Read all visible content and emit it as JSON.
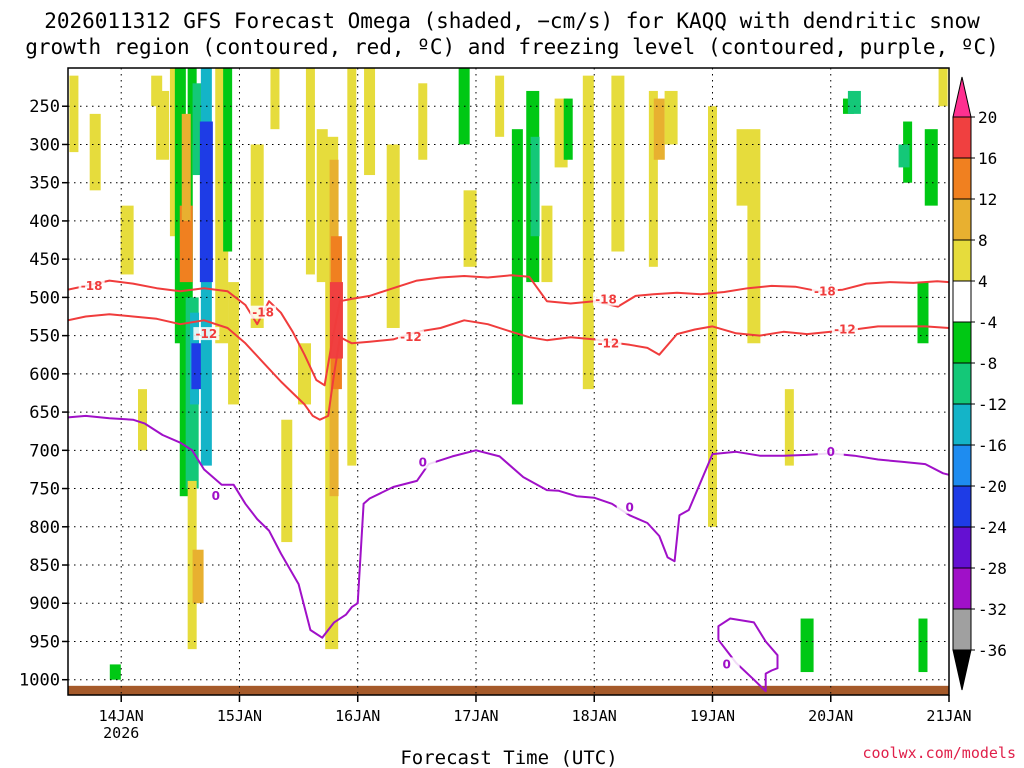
{
  "title_line1": "2026011312 GFS Forecast Omega (shaded, −cm/s) for KAQQ with dendritic snow",
  "title_line2": "growth region (contoured, red, ºC) and freezing level (contoured, purple, ºC)",
  "xlabel": "Forecast Time (UTC)",
  "credit": "coolwx.com/models",
  "chart_data": {
    "type": "heatmap",
    "title": "2026011312 GFS Forecast Omega (shaded, −cm/s) for KAQQ with dendritic snow growth region (contoured, red, ºC) and freezing level (contoured, purple, ºC)",
    "xlabel": "Forecast Time (UTC)",
    "ylabel": "",
    "x_unit": "day (Jan 2026)",
    "xlim": [
      13.55,
      21.0
    ],
    "x_ticks": [
      {
        "value": 14,
        "label": "14JAN",
        "sublabel": "2026"
      },
      {
        "value": 15,
        "label": "15JAN"
      },
      {
        "value": 16,
        "label": "16JAN"
      },
      {
        "value": 17,
        "label": "17JAN"
      },
      {
        "value": 18,
        "label": "18JAN"
      },
      {
        "value": 19,
        "label": "19JAN"
      },
      {
        "value": 20,
        "label": "20JAN"
      },
      {
        "value": 21,
        "label": "21JAN"
      }
    ],
    "y_unit": "hPa",
    "y_reversed": true,
    "ylim": [
      1020,
      200
    ],
    "y_ticks": [
      250,
      300,
      350,
      400,
      450,
      500,
      550,
      600,
      650,
      700,
      750,
      800,
      850,
      900,
      950,
      1000
    ],
    "grid": true,
    "colorbar": {
      "ticks": [
        20,
        16,
        12,
        8,
        4,
        -4,
        -8,
        -12,
        -16,
        -20,
        -24,
        -28,
        -32,
        -36
      ],
      "bins": [
        {
          "from": 20,
          "to": 24,
          "color": "#ff3090"
        },
        {
          "from": 16,
          "to": 20,
          "color": "#f04040"
        },
        {
          "from": 12,
          "to": 16,
          "color": "#f08020"
        },
        {
          "from": 8,
          "to": 12,
          "color": "#e8b030"
        },
        {
          "from": 4,
          "to": 8,
          "color": "#e6dc3c"
        },
        {
          "from": -4,
          "to": 4,
          "color": "#ffffff"
        },
        {
          "from": -8,
          "to": -4,
          "color": "#00c814"
        },
        {
          "from": -12,
          "to": -8,
          "color": "#14c878"
        },
        {
          "from": -16,
          "to": -12,
          "color": "#14b4c8"
        },
        {
          "from": -20,
          "to": -16,
          "color": "#1e8cf0"
        },
        {
          "from": -24,
          "to": -20,
          "color": "#1e3ce6"
        },
        {
          "from": -28,
          "to": -24,
          "color": "#6410d2"
        },
        {
          "from": -32,
          "to": -28,
          "color": "#a010c8"
        },
        {
          "from": -36,
          "to": -32,
          "color": "#a0a0a0"
        },
        {
          "from": -40,
          "to": -36,
          "color": "#000000"
        }
      ]
    },
    "omega_areas": [
      {
        "x": 13.6,
        "p0": 210,
        "p1": 310,
        "value": 5
      },
      {
        "x": 13.78,
        "p0": 260,
        "p1": 360,
        "value": 5
      },
      {
        "x": 14.05,
        "p0": 380,
        "p1": 470,
        "value": 5
      },
      {
        "x": 14.18,
        "p0": 620,
        "p1": 700,
        "value": 5
      },
      {
        "x": 14.3,
        "p0": 210,
        "p1": 250,
        "value": 5
      },
      {
        "x": 14.35,
        "p0": 230,
        "p1": 320,
        "value": 5
      },
      {
        "x": 14.45,
        "p0": 200,
        "p1": 420,
        "value": 5
      },
      {
        "x": 14.5,
        "p0": 200,
        "p1": 560,
        "value": -6
      },
      {
        "x": 14.55,
        "p0": 300,
        "p1": 760,
        "value": -6
      },
      {
        "x": 14.6,
        "p0": 200,
        "p1": 300,
        "value": -6
      },
      {
        "x": 14.65,
        "p0": 220,
        "p1": 340,
        "value": -10
      },
      {
        "x": 14.6,
        "p0": 500,
        "p1": 750,
        "value": -10
      },
      {
        "x": 14.62,
        "p0": 520,
        "p1": 640,
        "value": -14
      },
      {
        "x": 14.64,
        "p0": 560,
        "p1": 620,
        "value": -22
      },
      {
        "x": 14.55,
        "p0": 380,
        "p1": 480,
        "value": 14
      },
      {
        "x": 14.55,
        "p0": 260,
        "p1": 400,
        "value": 10
      },
      {
        "x": 14.72,
        "p0": 200,
        "p1": 720,
        "value": -14
      },
      {
        "x": 14.72,
        "p0": 270,
        "p1": 480,
        "value": -22
      },
      {
        "x": 14.6,
        "p0": 740,
        "p1": 960,
        "value": 5
      },
      {
        "x": 14.65,
        "p0": 830,
        "p1": 900,
        "value": 10
      },
      {
        "x": 14.85,
        "p0": 200,
        "p1": 560,
        "value": 5
      },
      {
        "x": 14.9,
        "p0": 200,
        "p1": 440,
        "value": -6
      },
      {
        "x": 14.95,
        "p0": 480,
        "p1": 640,
        "value": 5
      },
      {
        "x": 15.15,
        "p0": 300,
        "p1": 540,
        "value": 5
      },
      {
        "x": 15.3,
        "p0": 200,
        "p1": 280,
        "value": 5
      },
      {
        "x": 15.4,
        "p0": 660,
        "p1": 820,
        "value": 5
      },
      {
        "x": 15.55,
        "p0": 560,
        "p1": 640,
        "value": 5
      },
      {
        "x": 15.6,
        "p0": 200,
        "p1": 470,
        "value": 5
      },
      {
        "x": 15.7,
        "p0": 280,
        "p1": 480,
        "value": 5
      },
      {
        "x": 15.78,
        "p0": 290,
        "p1": 960,
        "value": 5
      },
      {
        "x": 15.8,
        "p0": 320,
        "p1": 760,
        "value": 10
      },
      {
        "x": 15.82,
        "p0": 420,
        "p1": 620,
        "value": 14
      },
      {
        "x": 15.82,
        "p0": 480,
        "p1": 580,
        "value": 18
      },
      {
        "x": 15.95,
        "p0": 200,
        "p1": 720,
        "value": 5
      },
      {
        "x": 16.1,
        "p0": 200,
        "p1": 340,
        "value": 5
      },
      {
        "x": 16.3,
        "p0": 300,
        "p1": 540,
        "value": 5
      },
      {
        "x": 16.55,
        "p0": 220,
        "p1": 320,
        "value": 5
      },
      {
        "x": 16.9,
        "p0": 200,
        "p1": 300,
        "value": -6
      },
      {
        "x": 16.95,
        "p0": 360,
        "p1": 460,
        "value": 5
      },
      {
        "x": 17.2,
        "p0": 210,
        "p1": 290,
        "value": 5
      },
      {
        "x": 17.35,
        "p0": 280,
        "p1": 640,
        "value": -6
      },
      {
        "x": 17.48,
        "p0": 230,
        "p1": 480,
        "value": -6
      },
      {
        "x": 17.5,
        "p0": 290,
        "p1": 420,
        "value": -10
      },
      {
        "x": 17.6,
        "p0": 380,
        "p1": 480,
        "value": 5
      },
      {
        "x": 17.72,
        "p0": 240,
        "p1": 330,
        "value": 5
      },
      {
        "x": 17.78,
        "p0": 240,
        "p1": 320,
        "value": -6
      },
      {
        "x": 17.95,
        "p0": 210,
        "p1": 620,
        "value": 5
      },
      {
        "x": 18.2,
        "p0": 210,
        "p1": 440,
        "value": 5
      },
      {
        "x": 18.5,
        "p0": 230,
        "p1": 460,
        "value": 5
      },
      {
        "x": 18.55,
        "p0": 240,
        "p1": 320,
        "value": 10
      },
      {
        "x": 18.65,
        "p0": 230,
        "p1": 300,
        "value": 5
      },
      {
        "x": 19.0,
        "p0": 250,
        "p1": 800,
        "value": 5
      },
      {
        "x": 19.25,
        "p0": 280,
        "p1": 380,
        "value": 5
      },
      {
        "x": 19.35,
        "p0": 280,
        "p1": 560,
        "value": 5
      },
      {
        "x": 19.65,
        "p0": 620,
        "p1": 720,
        "value": 5
      },
      {
        "x": 20.15,
        "p0": 240,
        "p1": 260,
        "value": -6
      },
      {
        "x": 20.2,
        "p0": 230,
        "p1": 260,
        "value": -10
      },
      {
        "x": 20.65,
        "p0": 270,
        "p1": 350,
        "value": -6
      },
      {
        "x": 20.62,
        "p0": 300,
        "p1": 330,
        "value": -10
      },
      {
        "x": 20.85,
        "p0": 280,
        "p1": 380,
        "value": -6
      },
      {
        "x": 20.95,
        "p0": 200,
        "p1": 250,
        "value": 5
      },
      {
        "x": 20.78,
        "p0": 480,
        "p1": 560,
        "value": -6
      },
      {
        "x": 19.8,
        "p0": 920,
        "p1": 990,
        "value": -6
      },
      {
        "x": 20.78,
        "p0": 920,
        "p1": 990,
        "value": -6
      },
      {
        "x": 13.95,
        "p0": 980,
        "p1": 1000,
        "value": -6
      }
    ],
    "contours": [
      {
        "name": "-18",
        "color": "#f03c3c",
        "label_color": "#f03c3c",
        "x": [
          13.55,
          13.7,
          13.9,
          14.1,
          14.3,
          14.5,
          14.7,
          14.9,
          15.05,
          15.15,
          15.25,
          15.35,
          15.45,
          15.55,
          15.65,
          15.72,
          15.78,
          15.85,
          15.95,
          16.1,
          16.3,
          16.5,
          16.7,
          16.9,
          17.1,
          17.3,
          17.45,
          17.6,
          17.8,
          18.0,
          18.2,
          18.35,
          18.5,
          18.7,
          18.9,
          19.1,
          19.3,
          19.5,
          19.7,
          19.9,
          20.1,
          20.3,
          20.5,
          20.7,
          20.9,
          21.0
        ],
        "y": [
          490,
          485,
          478,
          482,
          488,
          492,
          488,
          492,
          510,
          535,
          505,
          520,
          545,
          575,
          608,
          615,
          560,
          505,
          502,
          498,
          488,
          478,
          474,
          472,
          474,
          471,
          473,
          505,
          508,
          505,
          512,
          498,
          496,
          494,
          496,
          493,
          488,
          485,
          486,
          492,
          490,
          482,
          480,
          481,
          479,
          480
        ],
        "labels": [
          {
            "x": 13.75,
            "y": 485,
            "text": "-18"
          },
          {
            "x": 15.2,
            "y": 520,
            "text": "-18"
          },
          {
            "x": 18.1,
            "y": 503,
            "text": "-18"
          },
          {
            "x": 19.95,
            "y": 492,
            "text": "-18"
          }
        ]
      },
      {
        "name": "-12",
        "color": "#f03c3c",
        "label_color": "#f03c3c",
        "x": [
          13.55,
          13.7,
          13.9,
          14.1,
          14.3,
          14.5,
          14.7,
          14.9,
          15.05,
          15.2,
          15.35,
          15.45,
          15.55,
          15.62,
          15.68,
          15.75,
          15.8,
          15.85,
          15.95,
          16.1,
          16.3,
          16.5,
          16.7,
          16.9,
          17.1,
          17.3,
          17.45,
          17.6,
          17.8,
          18.0,
          18.2,
          18.3,
          18.45,
          18.55,
          18.7,
          18.85,
          19.0,
          19.2,
          19.4,
          19.6,
          19.8,
          20.0,
          20.2,
          20.4,
          20.6,
          20.8,
          21.0
        ],
        "y": [
          530,
          525,
          522,
          525,
          528,
          535,
          530,
          540,
          560,
          585,
          610,
          625,
          640,
          655,
          660,
          655,
          600,
          552,
          560,
          558,
          555,
          545,
          540,
          530,
          535,
          545,
          552,
          556,
          552,
          555,
          560,
          562,
          566,
          575,
          548,
          542,
          538,
          547,
          550,
          545,
          548,
          545,
          542,
          538,
          538,
          538,
          540
        ],
        "labels": [
          {
            "x": 14.72,
            "y": 548,
            "text": "-12"
          },
          {
            "x": 16.45,
            "y": 552,
            "text": "-12"
          },
          {
            "x": 18.12,
            "y": 560,
            "text": "-12"
          },
          {
            "x": 20.12,
            "y": 542,
            "text": "-12"
          }
        ]
      },
      {
        "name": "0",
        "color": "#a010c8",
        "label_color": "#a010c8",
        "x": [
          13.55,
          13.7,
          13.9,
          14.1,
          14.2,
          14.35,
          14.5,
          14.6,
          14.7,
          14.85,
          14.95,
          15.05,
          15.15,
          15.25,
          15.35,
          15.5,
          15.6,
          15.7,
          15.8,
          15.9,
          15.95,
          16.0,
          16.05,
          16.1,
          16.3,
          16.5,
          16.6,
          16.8,
          17.0,
          17.2,
          17.4,
          17.6,
          17.7,
          17.85,
          18.0,
          18.15,
          18.3,
          18.45,
          18.55,
          18.62,
          18.68,
          18.72,
          18.8,
          19.0,
          19.2,
          19.4,
          19.6,
          19.8,
          20.0,
          20.2,
          20.4,
          20.6,
          20.8,
          20.95,
          21.0
        ],
        "y": [
          657,
          655,
          658,
          660,
          665,
          680,
          690,
          700,
          725,
          745,
          745,
          770,
          790,
          805,
          835,
          875,
          935,
          945,
          925,
          915,
          905,
          900,
          770,
          763,
          748,
          740,
          718,
          708,
          700,
          708,
          735,
          752,
          753,
          760,
          762,
          770,
          785,
          795,
          812,
          840,
          845,
          785,
          778,
          705,
          702,
          707,
          707,
          706,
          704,
          707,
          712,
          715,
          718,
          730,
          732
        ],
        "labels": [
          {
            "x": 14.8,
            "y": 760,
            "text": "0"
          },
          {
            "x": 16.55,
            "y": 716,
            "text": "0"
          },
          {
            "x": 18.3,
            "y": 775,
            "text": "0"
          },
          {
            "x": 20.0,
            "y": 702,
            "text": "0"
          }
        ]
      },
      {
        "name": "0-loop",
        "color": "#a010c8",
        "label_color": "#a010c8",
        "closed": false,
        "x": [
          19.05,
          19.05,
          19.15,
          19.35,
          19.45,
          19.55,
          19.55,
          19.5,
          19.45,
          19.45,
          19.35,
          19.2,
          19.05
        ],
        "y": [
          948,
          930,
          920,
          925,
          950,
          968,
          985,
          988,
          992,
          1015,
          1000,
          978,
          948
        ],
        "labels": [
          {
            "x": 19.12,
            "y": 980,
            "text": "0"
          }
        ]
      }
    ],
    "terrain": {
      "top_hPa": 1008,
      "color": "#a55a2a"
    }
  }
}
